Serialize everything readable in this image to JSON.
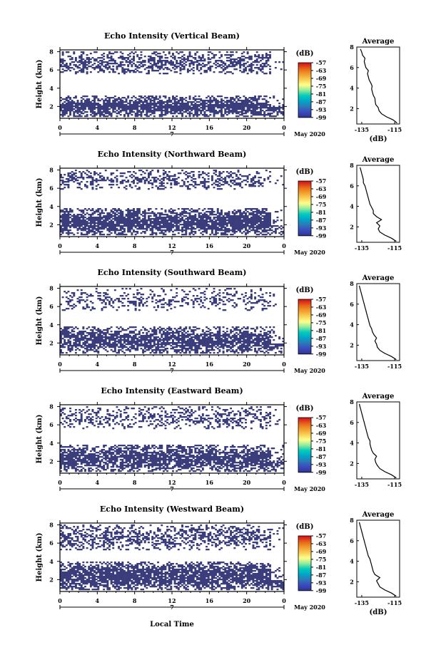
{
  "figure": {
    "date_label": "May 2020",
    "xlabel": "Local Time",
    "ylabel": "Height (km)",
    "day_label": "7",
    "colorbar_unit": "(dB)",
    "colorbar_ticks": [
      "-57",
      "-63",
      "-69",
      "-75",
      "-81",
      "-87",
      "-93",
      "-99"
    ],
    "colormap": [
      "#313695",
      "#3b4cc0",
      "#2c7bb6",
      "#00a6ca",
      "#00ccbc",
      "#90eb9d",
      "#ffff8c",
      "#f9d057",
      "#f29e2e",
      "#e76818",
      "#d7191c"
    ],
    "cell_color": "#3a3d7c",
    "profile_title": "Average",
    "profile_xlabel": "(dB)",
    "profile_xticks": [
      "-135",
      "-115"
    ]
  },
  "chart_data": [
    {
      "type": "heatmap",
      "title": "Echo Intensity (Vertical Beam)",
      "xlabel": "Local Time",
      "ylabel": "Height (km)",
      "x_ticks": [
        "0",
        "4",
        "8",
        "12",
        "16",
        "20",
        "0"
      ],
      "xlim": [
        0,
        24
      ],
      "y_ticks": [
        "2",
        "4",
        "6",
        "8"
      ],
      "ylim": [
        0.7,
        8.2
      ],
      "colorbar": {
        "label": "(dB)",
        "range": [
          -99,
          -57
        ]
      },
      "echo_layers": [
        {
          "from_km": 0.8,
          "to_km": 3.2,
          "coverage": 0.95
        },
        {
          "from_km": 5.5,
          "to_km": 8.0,
          "coverage": 0.55
        }
      ],
      "profile": {
        "title": "Average",
        "xlabel": "(dB)",
        "xlim": [
          -138,
          -112
        ],
        "ylim": [
          0.5,
          8
        ],
        "height_km": [
          0.6,
          0.9,
          1.2,
          1.5,
          1.8,
          2.1,
          2.4,
          2.7,
          3.0,
          3.3,
          3.6,
          3.9,
          4.2,
          4.5,
          4.8,
          5.1,
          5.4,
          5.7,
          6.0,
          6.3,
          6.6,
          6.9,
          7.2,
          7.5,
          7.8
        ],
        "mean_db": [
          -113.5,
          -116,
          -120,
          -123,
          -124.5,
          -125,
          -126.5,
          -126.8,
          -127,
          -128,
          -128.5,
          -129,
          -128.7,
          -129.5,
          -130.5,
          -131,
          -131.5,
          -131,
          -132.5,
          -133,
          -133.5,
          -133,
          -134.5,
          -135,
          -135.8
        ]
      }
    },
    {
      "type": "heatmap",
      "title": "Echo Intensity (Northward Beam)",
      "xlabel": "Local Time",
      "ylabel": "Height (km)",
      "x_ticks": [
        "0",
        "4",
        "8",
        "12",
        "16",
        "20",
        "0"
      ],
      "xlim": [
        0,
        24
      ],
      "y_ticks": [
        "2",
        "4",
        "6",
        "8"
      ],
      "ylim": [
        0.7,
        8.2
      ],
      "colorbar": {
        "label": "(dB)",
        "range": [
          -99,
          -57
        ]
      },
      "echo_layers": [
        {
          "from_km": 0.8,
          "to_km": 3.8,
          "coverage": 0.85
        },
        {
          "from_km": 5.8,
          "to_km": 8.0,
          "coverage": 0.45
        }
      ],
      "profile": {
        "title": "Average",
        "xlabel": "(dB)",
        "xlim": [
          -138,
          -112
        ],
        "ylim": [
          0.5,
          8
        ],
        "height_km": [
          0.6,
          0.9,
          1.2,
          1.5,
          1.8,
          2.1,
          2.4,
          2.7,
          3.0,
          3.3,
          3.6,
          3.9,
          4.2,
          4.5,
          4.8,
          5.1,
          5.4,
          5.7,
          6.0,
          6.3,
          6.6,
          6.9,
          7.2,
          7.5,
          7.8
        ],
        "mean_db": [
          -114,
          -117,
          -121,
          -124,
          -125,
          -124,
          -126,
          -123,
          -126,
          -128,
          -128,
          -129,
          -130,
          -130.5,
          -131,
          -131.5,
          -132,
          -132.5,
          -133,
          -134,
          -134,
          -134.5,
          -135,
          -135.5,
          -136
        ]
      }
    },
    {
      "type": "heatmap",
      "title": "Echo Intensity (Southward Beam)",
      "xlabel": "Local Time",
      "ylabel": "Height (km)",
      "x_ticks": [
        "0",
        "4",
        "8",
        "12",
        "16",
        "20",
        "0"
      ],
      "xlim": [
        0,
        24
      ],
      "y_ticks": [
        "2",
        "4",
        "6",
        "8"
      ],
      "ylim": [
        0.7,
        8.2
      ],
      "colorbar": {
        "label": "(dB)",
        "range": [
          -99,
          -57
        ]
      },
      "echo_layers": [
        {
          "from_km": 0.8,
          "to_km": 3.8,
          "coverage": 0.8
        },
        {
          "from_km": 5.5,
          "to_km": 8.0,
          "coverage": 0.3
        }
      ],
      "profile": {
        "title": "Average",
        "xlabel": "(dB)",
        "xlim": [
          -138,
          -112
        ],
        "ylim": [
          0.5,
          8
        ],
        "height_km": [
          0.6,
          0.9,
          1.2,
          1.5,
          1.8,
          2.1,
          2.4,
          2.7,
          3.0,
          3.3,
          3.6,
          3.9,
          4.2,
          4.5,
          4.8,
          5.1,
          5.4,
          5.7,
          6.0,
          6.3,
          6.6,
          6.9,
          7.2,
          7.5,
          7.8
        ],
        "mean_db": [
          -114,
          -117,
          -121,
          -124,
          -125.5,
          -126,
          -127,
          -126,
          -127.5,
          -128.5,
          -129,
          -130,
          -130.5,
          -131,
          -131.5,
          -132,
          -132.5,
          -133,
          -133.5,
          -134,
          -134.5,
          -135,
          -135.5,
          -136,
          -136.5
        ]
      }
    },
    {
      "type": "heatmap",
      "title": "Echo Intensity (Eastward Beam)",
      "xlabel": "Local Time",
      "ylabel": "Height (km)",
      "x_ticks": [
        "0",
        "4",
        "8",
        "12",
        "16",
        "20",
        "0"
      ],
      "xlim": [
        0,
        24
      ],
      "y_ticks": [
        "2",
        "4",
        "6",
        "8"
      ],
      "ylim": [
        0.7,
        8.2
      ],
      "colorbar": {
        "label": "(dB)",
        "range": [
          -99,
          -57
        ]
      },
      "echo_layers": [
        {
          "from_km": 0.8,
          "to_km": 3.8,
          "coverage": 0.8
        },
        {
          "from_km": 5.5,
          "to_km": 8.0,
          "coverage": 0.4
        }
      ],
      "profile": {
        "title": "Average",
        "xlabel": "(dB)",
        "xlim": [
          -138,
          -112
        ],
        "ylim": [
          0.5,
          8
        ],
        "height_km": [
          0.6,
          0.9,
          1.2,
          1.5,
          1.8,
          2.1,
          2.4,
          2.7,
          3.0,
          3.3,
          3.6,
          3.9,
          4.2,
          4.5,
          4.8,
          5.1,
          5.4,
          5.7,
          6.0,
          6.3,
          6.6,
          6.9,
          7.2,
          7.5,
          7.8
        ],
        "mean_db": [
          -114,
          -117,
          -121,
          -124,
          -125.5,
          -126.5,
          -127,
          -126,
          -128,
          -129,
          -129.5,
          -130,
          -130,
          -131,
          -131.5,
          -132,
          -132.5,
          -133,
          -133.5,
          -134,
          -134.5,
          -135,
          -135.5,
          -136,
          -136.5
        ]
      }
    },
    {
      "type": "heatmap",
      "title": "Echo Intensity (Westward Beam)",
      "xlabel": "Local Time",
      "ylabel": "Height (km)",
      "x_ticks": [
        "0",
        "4",
        "8",
        "12",
        "16",
        "20",
        "0"
      ],
      "xlim": [
        0,
        24
      ],
      "y_ticks": [
        "2",
        "4",
        "6",
        "8"
      ],
      "ylim": [
        0.7,
        8.2
      ],
      "colorbar": {
        "label": "(dB)",
        "range": [
          -99,
          -57
        ]
      },
      "echo_layers": [
        {
          "from_km": 0.8,
          "to_km": 4.0,
          "coverage": 0.85
        },
        {
          "from_km": 5.2,
          "to_km": 8.0,
          "coverage": 0.5
        }
      ],
      "profile": {
        "title": "Average",
        "xlabel": "(dB)",
        "xlim": [
          -138,
          -112
        ],
        "ylim": [
          0.5,
          8
        ],
        "height_km": [
          0.6,
          0.9,
          1.2,
          1.5,
          1.8,
          2.1,
          2.4,
          2.7,
          3.0,
          3.3,
          3.6,
          3.9,
          4.2,
          4.5,
          4.8,
          5.1,
          5.4,
          5.7,
          6.0,
          6.3,
          6.6,
          6.9,
          7.2,
          7.5,
          7.8
        ],
        "mean_db": [
          -114,
          -117,
          -121,
          -124,
          -125,
          -126,
          -124,
          -127,
          -128,
          -128.5,
          -129,
          -129.5,
          -130,
          -131,
          -131.5,
          -132,
          -132.5,
          -133,
          -133.5,
          -134,
          -134.5,
          -135,
          -135.5,
          -136,
          -136.5
        ]
      }
    }
  ]
}
